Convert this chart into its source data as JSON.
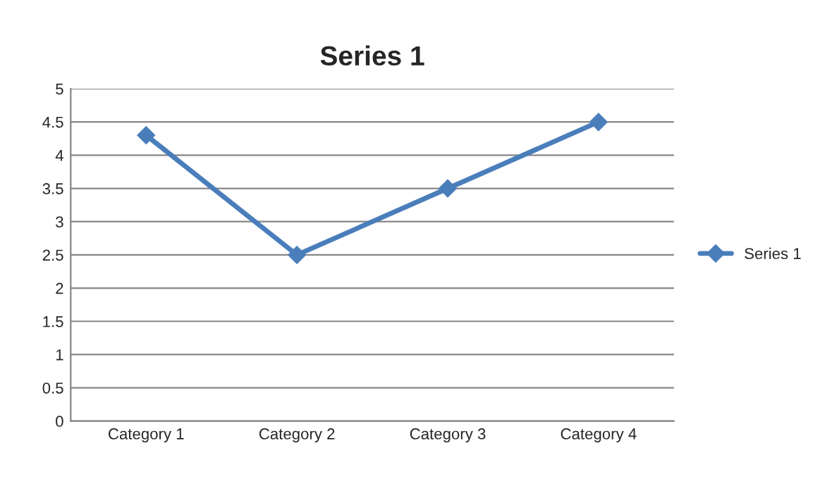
{
  "chart_data": {
    "type": "line",
    "title": "Series 1",
    "categories": [
      "Category 1",
      "Category 2",
      "Category 3",
      "Category 4"
    ],
    "series": [
      {
        "name": "Series 1",
        "color": "#4a7ebb",
        "values": [
          4.3,
          2.5,
          3.5,
          4.5
        ]
      }
    ],
    "ylim": [
      0,
      5
    ],
    "yticks": [
      0,
      0.5,
      1,
      1.5,
      2,
      2.5,
      3,
      3.5,
      4,
      4.5,
      5
    ],
    "grid": "y",
    "legend": "right",
    "marker": "diamond",
    "line_style": "solid"
  }
}
